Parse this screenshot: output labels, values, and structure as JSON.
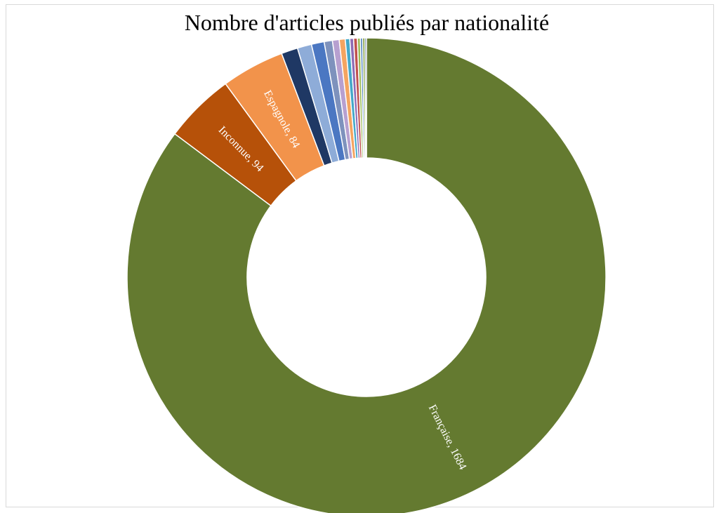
{
  "chart_data": {
    "type": "pie",
    "variant": "donut",
    "title": "Nombre d'articles publiés par nationalité",
    "legend": "none",
    "slices": [
      {
        "label": "Française",
        "value": 1684,
        "color": "#647a30",
        "show_label": true
      },
      {
        "label": "Inconnue",
        "value": 94,
        "color": "#b65109",
        "show_label": true
      },
      {
        "label": "Espagnole",
        "value": 84,
        "color": "#f2934b",
        "show_label": true
      },
      {
        "value": 22,
        "color": "#1f3864",
        "show_label": false
      },
      {
        "value": 19,
        "color": "#8eacd8",
        "show_label": false
      },
      {
        "value": 17,
        "color": "#4b77c2",
        "show_label": false
      },
      {
        "value": 11,
        "color": "#7e92bd",
        "show_label": false
      },
      {
        "value": 9,
        "color": "#b7a0d0",
        "show_label": false
      },
      {
        "value": 8,
        "color": "#f4a460",
        "show_label": false
      },
      {
        "value": 6,
        "color": "#44a8c8",
        "show_label": false
      },
      {
        "value": 5,
        "color": "#8e6bb5",
        "show_label": false
      },
      {
        "value": 5,
        "color": "#c0504d",
        "show_label": false
      },
      {
        "value": 4,
        "color": "#9bbb59",
        "show_label": false
      },
      {
        "value": 3,
        "color": "#4f81bd",
        "show_label": false
      },
      {
        "value": 3,
        "color": "#7e9c3a",
        "show_label": false
      },
      {
        "value": 2,
        "color": "#17375e",
        "show_label": false
      }
    ]
  }
}
